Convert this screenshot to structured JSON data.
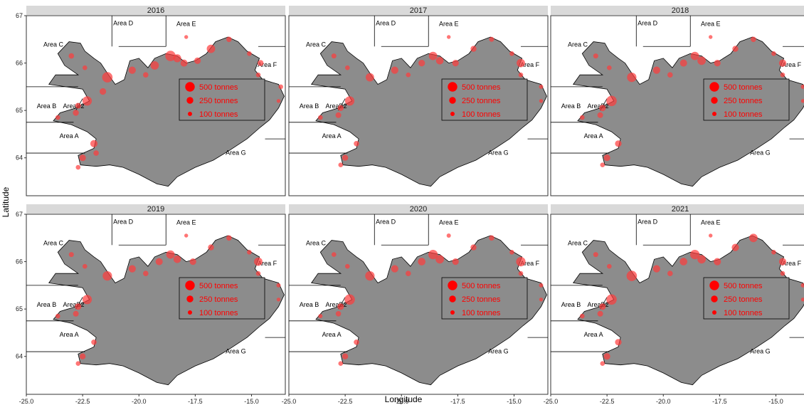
{
  "figure": {
    "x_axis_title": "Longitude",
    "y_axis_title": "Latitude"
  },
  "panels": [
    {
      "year": "2016"
    },
    {
      "year": "2017"
    },
    {
      "year": "2018"
    },
    {
      "year": "2019"
    },
    {
      "year": "2020"
    },
    {
      "year": "2021"
    }
  ],
  "area_labels": [
    "Area A",
    "Area B",
    "AreaB2",
    "Area C",
    "Area D",
    "Area E",
    "Area F",
    "Area G"
  ],
  "legend": {
    "items": [
      {
        "label": "500 tonnes",
        "value": 500
      },
      {
        "label": "250 tonnes",
        "value": 250
      },
      {
        "label": "100 tonnes",
        "value": 100
      }
    ],
    "marker_color": "#ff0000"
  },
  "x_ticks": [
    "-25.0",
    "-22.5",
    "-20.0",
    "-17.5",
    "-15.0"
  ],
  "y_ticks": [
    "64",
    "65",
    "66",
    "67"
  ],
  "colors": {
    "land": "#8c8c8c",
    "points": "#ff3b3b",
    "strip": "#d9d9d9"
  },
  "chart_data": {
    "type": "scatter",
    "description_units": "longitude (deg), latitude (deg), catch (tonnes)",
    "xlim": [
      -25.0,
      -13.5
    ],
    "ylim": [
      63.2,
      67.0
    ],
    "x_tick_values": [
      -25.0,
      -22.5,
      -20.0,
      -17.5,
      -15.0
    ],
    "y_tick_values": [
      64,
      65,
      66,
      67
    ],
    "panels": [
      {
        "year": "2016",
        "points": [
          [
            -23.0,
            66.15,
            80
          ],
          [
            -22.4,
            65.9,
            60
          ],
          [
            -21.4,
            65.7,
            300
          ],
          [
            -21.6,
            65.4,
            120
          ],
          [
            -22.3,
            65.2,
            250
          ],
          [
            -22.7,
            65.1,
            90
          ],
          [
            -22.8,
            64.95,
            100
          ],
          [
            -23.6,
            64.85,
            60
          ],
          [
            -22.0,
            64.3,
            150
          ],
          [
            -22.5,
            64.0,
            120
          ],
          [
            -21.9,
            64.1,
            80
          ],
          [
            -22.7,
            63.8,
            60
          ],
          [
            -20.3,
            65.85,
            150
          ],
          [
            -19.7,
            65.75,
            80
          ],
          [
            -19.3,
            65.95,
            200
          ],
          [
            -18.6,
            66.15,
            300
          ],
          [
            -18.3,
            66.1,
            180
          ],
          [
            -18.0,
            66.0,
            140
          ],
          [
            -17.4,
            66.05,
            120
          ],
          [
            -16.8,
            66.3,
            200
          ],
          [
            -16.0,
            66.5,
            80
          ],
          [
            -15.1,
            66.2,
            60
          ],
          [
            -14.6,
            66.0,
            100
          ],
          [
            -14.7,
            65.75,
            60
          ],
          [
            -17.9,
            66.55,
            40
          ],
          [
            -13.7,
            65.5,
            60
          ],
          [
            -13.8,
            65.2,
            40
          ]
        ]
      },
      {
        "year": "2017",
        "points": [
          [
            -23.0,
            66.15,
            70
          ],
          [
            -22.4,
            65.9,
            60
          ],
          [
            -21.4,
            65.7,
            200
          ],
          [
            -22.3,
            65.2,
            250
          ],
          [
            -22.7,
            65.05,
            100
          ],
          [
            -22.8,
            64.9,
            90
          ],
          [
            -23.6,
            64.85,
            60
          ],
          [
            -22.0,
            64.3,
            80
          ],
          [
            -22.5,
            64.0,
            100
          ],
          [
            -22.7,
            63.85,
            60
          ],
          [
            -20.3,
            65.85,
            150
          ],
          [
            -19.7,
            65.75,
            60
          ],
          [
            -19.1,
            66.0,
            120
          ],
          [
            -18.6,
            66.15,
            200
          ],
          [
            -18.3,
            66.05,
            160
          ],
          [
            -17.6,
            66.0,
            120
          ],
          [
            -16.8,
            66.3,
            100
          ],
          [
            -16.0,
            66.5,
            70
          ],
          [
            -15.1,
            66.2,
            60
          ],
          [
            -14.7,
            66.0,
            200
          ],
          [
            -14.7,
            65.75,
            60
          ],
          [
            -17.9,
            66.55,
            40
          ],
          [
            -13.8,
            65.5,
            50
          ],
          [
            -13.8,
            65.2,
            40
          ]
        ]
      },
      {
        "year": "2018",
        "points": [
          [
            -23.0,
            66.15,
            70
          ],
          [
            -22.4,
            65.9,
            60
          ],
          [
            -21.4,
            65.7,
            250
          ],
          [
            -22.3,
            65.2,
            300
          ],
          [
            -22.7,
            65.05,
            120
          ],
          [
            -22.8,
            64.9,
            90
          ],
          [
            -23.6,
            64.85,
            60
          ],
          [
            -22.0,
            64.3,
            120
          ],
          [
            -22.5,
            64.0,
            120
          ],
          [
            -22.7,
            63.85,
            60
          ],
          [
            -20.3,
            65.85,
            150
          ],
          [
            -19.7,
            65.75,
            80
          ],
          [
            -19.1,
            66.0,
            140
          ],
          [
            -18.6,
            66.15,
            200
          ],
          [
            -18.3,
            66.05,
            200
          ],
          [
            -17.6,
            66.0,
            120
          ],
          [
            -16.8,
            66.3,
            100
          ],
          [
            -16.0,
            66.5,
            80
          ],
          [
            -15.1,
            66.2,
            60
          ],
          [
            -14.7,
            66.0,
            150
          ],
          [
            -14.7,
            65.75,
            60
          ],
          [
            -17.9,
            66.55,
            40
          ],
          [
            -13.8,
            65.5,
            50
          ],
          [
            -13.8,
            65.2,
            40
          ]
        ]
      },
      {
        "year": "2019",
        "points": [
          [
            -23.0,
            66.15,
            70
          ],
          [
            -22.4,
            65.9,
            60
          ],
          [
            -21.4,
            65.7,
            250
          ],
          [
            -22.3,
            65.2,
            250
          ],
          [
            -22.7,
            65.05,
            120
          ],
          [
            -22.8,
            64.9,
            90
          ],
          [
            -23.6,
            64.85,
            60
          ],
          [
            -22.0,
            64.3,
            80
          ],
          [
            -22.5,
            64.0,
            100
          ],
          [
            -22.7,
            63.85,
            60
          ],
          [
            -20.3,
            65.85,
            150
          ],
          [
            -19.7,
            65.75,
            80
          ],
          [
            -19.1,
            66.0,
            140
          ],
          [
            -18.6,
            66.15,
            200
          ],
          [
            -18.3,
            66.05,
            160
          ],
          [
            -17.6,
            66.0,
            120
          ],
          [
            -16.8,
            66.3,
            100
          ],
          [
            -16.0,
            66.5,
            80
          ],
          [
            -15.1,
            66.2,
            60
          ],
          [
            -14.7,
            66.0,
            200
          ],
          [
            -14.7,
            65.75,
            60
          ],
          [
            -17.9,
            66.55,
            40
          ],
          [
            -13.8,
            65.5,
            50
          ],
          [
            -13.8,
            65.2,
            40
          ]
        ]
      },
      {
        "year": "2020",
        "points": [
          [
            -23.0,
            66.15,
            60
          ],
          [
            -22.4,
            65.9,
            60
          ],
          [
            -21.4,
            65.7,
            250
          ],
          [
            -22.3,
            65.2,
            300
          ],
          [
            -22.7,
            65.05,
            120
          ],
          [
            -22.8,
            64.9,
            80
          ],
          [
            -23.6,
            64.85,
            50
          ],
          [
            -22.0,
            64.3,
            80
          ],
          [
            -22.5,
            64.0,
            100
          ],
          [
            -22.7,
            63.85,
            60
          ],
          [
            -20.3,
            65.85,
            150
          ],
          [
            -19.7,
            65.75,
            80
          ],
          [
            -19.1,
            66.0,
            160
          ],
          [
            -18.6,
            66.15,
            250
          ],
          [
            -18.3,
            66.05,
            200
          ],
          [
            -17.6,
            66.0,
            120
          ],
          [
            -16.8,
            66.3,
            100
          ],
          [
            -16.0,
            66.5,
            80
          ],
          [
            -15.1,
            66.2,
            60
          ],
          [
            -14.7,
            66.0,
            250
          ],
          [
            -14.7,
            65.75,
            60
          ],
          [
            -17.9,
            66.55,
            50
          ],
          [
            -13.8,
            65.5,
            50
          ],
          [
            -13.8,
            65.2,
            40
          ]
        ]
      },
      {
        "year": "2021",
        "points": [
          [
            -23.0,
            66.15,
            70
          ],
          [
            -22.4,
            65.9,
            60
          ],
          [
            -21.4,
            65.7,
            300
          ],
          [
            -22.3,
            65.2,
            300
          ],
          [
            -22.7,
            65.05,
            120
          ],
          [
            -22.8,
            64.9,
            90
          ],
          [
            -23.6,
            64.85,
            60
          ],
          [
            -22.0,
            64.3,
            120
          ],
          [
            -22.5,
            64.0,
            120
          ],
          [
            -22.7,
            63.85,
            60
          ],
          [
            -20.3,
            65.85,
            150
          ],
          [
            -19.7,
            65.75,
            80
          ],
          [
            -19.1,
            66.0,
            160
          ],
          [
            -18.6,
            66.15,
            250
          ],
          [
            -18.3,
            66.05,
            200
          ],
          [
            -17.6,
            66.0,
            150
          ],
          [
            -16.8,
            66.3,
            150
          ],
          [
            -16.0,
            66.5,
            200
          ],
          [
            -15.1,
            66.2,
            60
          ],
          [
            -14.7,
            66.0,
            150
          ],
          [
            -14.7,
            65.75,
            60
          ],
          [
            -17.9,
            66.55,
            40
          ],
          [
            -13.8,
            65.5,
            50
          ],
          [
            -13.8,
            65.2,
            40
          ]
        ]
      }
    ]
  }
}
